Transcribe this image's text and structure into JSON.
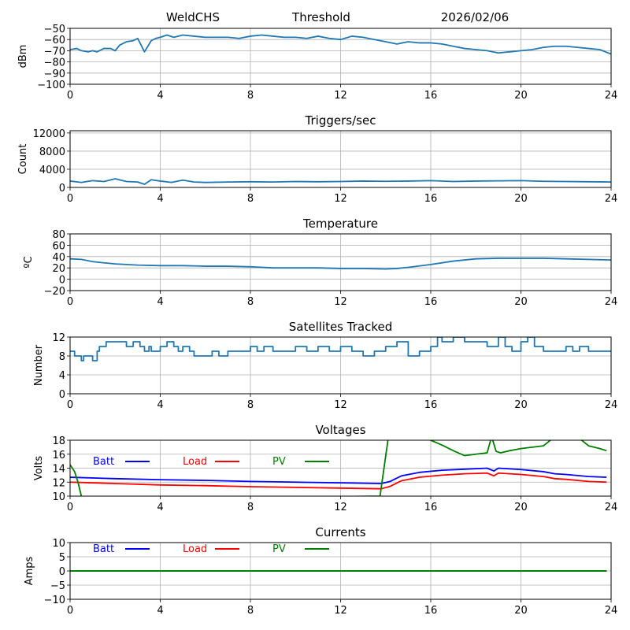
{
  "header": {
    "site": "WeldCHS",
    "mode": "Threshold",
    "date": "2026/02/06"
  },
  "chart_data": [
    {
      "type": "line",
      "id": "signal",
      "title": "",
      "xlabel": "",
      "ylabel": "dBm",
      "xlim": [
        0,
        24
      ],
      "ylim": [
        -100,
        -50
      ],
      "xticks": [
        0,
        4,
        8,
        12,
        16,
        20,
        24
      ],
      "yticks": [
        -100,
        -90,
        -80,
        -70,
        -60,
        -50
      ],
      "ytick_labels": [
        "−100",
        "−90",
        "−80",
        "−70",
        "−60",
        "−50"
      ],
      "grid": true,
      "series": [
        {
          "name": "signal",
          "color": "#1f77b4",
          "x": [
            0,
            0.3,
            0.5,
            0.8,
            1,
            1.2,
            1.5,
            1.8,
            2,
            2.2,
            2.5,
            2.8,
            3,
            3.3,
            3.6,
            3.8,
            4,
            4.3,
            4.6,
            5,
            5.5,
            6,
            6.5,
            7,
            7.5,
            8,
            8.5,
            9,
            9.5,
            10,
            10.5,
            11,
            11.5,
            12,
            12.5,
            13,
            13.5,
            14,
            14.5,
            15,
            15.5,
            16,
            16.5,
            17,
            17.5,
            18,
            18.5,
            19,
            19.5,
            20,
            20.5,
            21,
            21.5,
            22,
            22.5,
            23,
            23.5,
            24
          ],
          "y": [
            -69,
            -68,
            -70,
            -71,
            -70,
            -71,
            -68,
            -68,
            -70,
            -65,
            -62,
            -61,
            -59,
            -71,
            -61,
            -59,
            -58,
            -56,
            -58,
            -56,
            -57,
            -58,
            -58,
            -58,
            -59,
            -57,
            -56,
            -57,
            -58,
            -58,
            -59,
            -57,
            -59,
            -60,
            -57,
            -58,
            -60,
            -62,
            -64,
            -62,
            -63,
            -63,
            -64,
            -66,
            -68,
            -69,
            -70,
            -72,
            -71,
            -70,
            -69,
            -67,
            -66,
            -66,
            -67,
            -68,
            -69,
            -73
          ]
        }
      ]
    },
    {
      "type": "line",
      "id": "triggers",
      "title": "Triggers/sec",
      "xlabel": "",
      "ylabel": "Count",
      "xlim": [
        0,
        24
      ],
      "ylim": [
        0,
        12500
      ],
      "xticks": [
        0,
        4,
        8,
        12,
        16,
        20,
        24
      ],
      "yticks": [
        0,
        4000,
        8000,
        12000
      ],
      "ytick_labels": [
        "0",
        "4000",
        "8000",
        "12000"
      ],
      "grid": true,
      "series": [
        {
          "name": "triggers",
          "color": "#1f77b4",
          "x": [
            0,
            0.5,
            1,
            1.5,
            2,
            2.5,
            3,
            3.3,
            3.6,
            4,
            4.5,
            5,
            5.5,
            6,
            7,
            8,
            9,
            10,
            11,
            12,
            13,
            14,
            15,
            16,
            17,
            18,
            19,
            20,
            21,
            22,
            23,
            24
          ],
          "y": [
            1400,
            1100,
            1500,
            1300,
            1900,
            1300,
            1200,
            700,
            1700,
            1400,
            1100,
            1600,
            1200,
            1100,
            1200,
            1250,
            1200,
            1300,
            1250,
            1300,
            1400,
            1350,
            1400,
            1500,
            1300,
            1400,
            1450,
            1500,
            1350,
            1300,
            1250,
            1200
          ]
        }
      ]
    },
    {
      "type": "line",
      "id": "temperature",
      "title": "Temperature",
      "xlabel": "",
      "ylabel": "ºC",
      "xlim": [
        0,
        24
      ],
      "ylim": [
        -20,
        80
      ],
      "xticks": [
        0,
        4,
        8,
        12,
        16,
        20,
        24
      ],
      "yticks": [
        -20,
        0,
        20,
        40,
        60,
        80
      ],
      "ytick_labels": [
        "−20",
        "0",
        "20",
        "40",
        "60",
        "80"
      ],
      "grid": true,
      "series": [
        {
          "name": "temperature",
          "color": "#1f77b4",
          "x": [
            0,
            0.5,
            1,
            2,
            3,
            4,
            5,
            6,
            7,
            8,
            9,
            10,
            11,
            12,
            13,
            14,
            14.5,
            15,
            16,
            17,
            18,
            19,
            20,
            21,
            22,
            23,
            24
          ],
          "y": [
            36,
            35,
            31,
            27,
            25,
            24,
            24,
            23,
            23,
            22,
            20,
            20,
            20,
            19,
            19,
            18,
            19,
            21,
            26,
            32,
            36,
            37,
            37,
            37,
            36,
            35,
            34
          ]
        }
      ]
    },
    {
      "type": "line",
      "id": "satellites",
      "title": "Satellites Tracked",
      "xlabel": "",
      "ylabel": "Number",
      "xlim": [
        0,
        24
      ],
      "ylim": [
        0,
        12
      ],
      "xticks": [
        0,
        4,
        8,
        12,
        16,
        20,
        24
      ],
      "yticks": [
        0,
        4,
        8,
        12
      ],
      "ytick_labels": [
        "0",
        "4",
        "8",
        "12"
      ],
      "grid": true,
      "step": true,
      "series": [
        {
          "name": "satellites",
          "color": "#1f77b4",
          "x": [
            0,
            0.2,
            0.5,
            0.6,
            0.8,
            1,
            1.2,
            1.3,
            1.6,
            2,
            2.5,
            2.8,
            3.1,
            3.3,
            3.5,
            3.6,
            3.8,
            4,
            4.3,
            4.6,
            4.8,
            5,
            5.3,
            5.5,
            6,
            6.3,
            6.6,
            7,
            7.5,
            8,
            8.3,
            8.6,
            9,
            9.5,
            10,
            10.5,
            11,
            11.5,
            12,
            12.5,
            13,
            13.5,
            14,
            14.5,
            15,
            15.5,
            16,
            16.3,
            16.5,
            17,
            17.5,
            18,
            18.5,
            19,
            19.3,
            19.6,
            20,
            20.3,
            20.6,
            21,
            21.5,
            22,
            22.3,
            22.6,
            23,
            23.5,
            24
          ],
          "y": [
            9,
            8,
            7,
            8,
            8,
            7,
            9,
            10,
            11,
            11,
            10,
            11,
            10,
            9,
            10,
            9,
            9,
            10,
            11,
            10,
            9,
            10,
            9,
            8,
            8,
            9,
            8,
            9,
            9,
            10,
            9,
            10,
            9,
            9,
            10,
            9,
            10,
            9,
            10,
            9,
            8,
            9,
            10,
            11,
            8,
            9,
            10,
            12,
            11,
            12,
            11,
            11,
            10,
            12,
            10,
            9,
            11,
            12,
            10,
            9,
            9,
            10,
            9,
            10,
            9,
            9,
            9
          ]
        }
      ]
    },
    {
      "type": "line",
      "id": "voltages",
      "title": "Voltages",
      "xlabel": "",
      "ylabel": "Volts",
      "xlim": [
        0,
        24
      ],
      "ylim": [
        10,
        18
      ],
      "xticks": [
        0,
        4,
        8,
        12,
        16,
        20,
        24
      ],
      "yticks": [
        10,
        12,
        14,
        16,
        18
      ],
      "ytick_labels": [
        "10",
        "12",
        "14",
        "16",
        "18"
      ],
      "grid": true,
      "legend": [
        "Batt",
        "Load",
        "PV"
      ],
      "series": [
        {
          "name": "Batt",
          "color": "#0000ff",
          "x": [
            0,
            2,
            4,
            6,
            8,
            10,
            12,
            13.8,
            14.2,
            14.7,
            15.5,
            16.5,
            17.5,
            18.5,
            18.8,
            19,
            20,
            21,
            21.5,
            22,
            23,
            23.8
          ],
          "y": [
            12.7,
            12.5,
            12.35,
            12.25,
            12.1,
            12.0,
            11.9,
            11.8,
            12.1,
            12.9,
            13.4,
            13.7,
            13.85,
            14.0,
            13.6,
            14.0,
            13.8,
            13.5,
            13.2,
            13.1,
            12.8,
            12.7
          ]
        },
        {
          "name": "Load",
          "color": "#ff0000",
          "x": [
            0,
            2,
            4,
            6,
            8,
            10,
            12,
            13.8,
            14.2,
            14.7,
            15.5,
            16.5,
            17.5,
            18.5,
            18.8,
            19,
            20,
            21,
            21.5,
            22,
            23,
            23.8
          ],
          "y": [
            12.0,
            11.8,
            11.6,
            11.5,
            11.35,
            11.25,
            11.15,
            11.05,
            11.4,
            12.2,
            12.7,
            13.0,
            13.2,
            13.3,
            12.9,
            13.3,
            13.1,
            12.8,
            12.5,
            12.4,
            12.1,
            12.0
          ]
        },
        {
          "name": "PV",
          "color": "#008000",
          "x": [
            0,
            0.2,
            0.35,
            0.5,
            0.55,
            13.75,
            14.1,
            14.3,
            15.5,
            16,
            16.5,
            17,
            17.5,
            18,
            18.5,
            18.7,
            18.9,
            19.1,
            19.5,
            20,
            20.5,
            21,
            21.5,
            22,
            22.5,
            23,
            23.5,
            23.8
          ],
          "y": [
            14.5,
            13.5,
            12.0,
            10.0,
            9.5,
            10.0,
            18.0,
            18.5,
            18.5,
            18.0,
            17.3,
            16.5,
            15.8,
            16.0,
            16.2,
            18.5,
            16.4,
            16.2,
            16.5,
            16.8,
            17.0,
            17.2,
            18.5,
            18.5,
            18.5,
            17.2,
            16.8,
            16.5
          ]
        }
      ]
    },
    {
      "type": "line",
      "id": "currents",
      "title": "Currents",
      "xlabel": "",
      "ylabel": "Amps",
      "xlim": [
        0,
        24
      ],
      "ylim": [
        -10,
        10
      ],
      "xticks": [
        0,
        4,
        8,
        12,
        16,
        20,
        24
      ],
      "yticks": [
        -10,
        -5,
        0,
        5,
        10
      ],
      "ytick_labels": [
        "−10",
        "−5",
        "0",
        "5",
        "10"
      ],
      "grid": true,
      "legend": [
        "Batt",
        "Load",
        "PV"
      ],
      "series": [
        {
          "name": "Batt",
          "color": "#0000ff",
          "x": [
            0,
            23.8
          ],
          "y": [
            0,
            0
          ]
        },
        {
          "name": "Load",
          "color": "#ff0000",
          "x": [
            0,
            23.8
          ],
          "y": [
            0,
            0
          ]
        },
        {
          "name": "PV",
          "color": "#008000",
          "x": [
            0,
            23.8
          ],
          "y": [
            0,
            0
          ]
        }
      ]
    }
  ]
}
